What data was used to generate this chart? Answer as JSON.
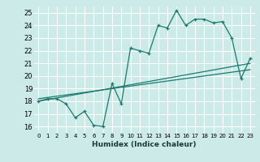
{
  "xlabel": "Humidex (Indice chaleur)",
  "ylabel": "",
  "bg_color": "#cceae7",
  "grid_color": "#ffffff",
  "line_color": "#1a7a6e",
  "xlim": [
    -0.5,
    23.5
  ],
  "ylim": [
    15.5,
    25.5
  ],
  "xticks": [
    0,
    1,
    2,
    3,
    4,
    5,
    6,
    7,
    8,
    9,
    10,
    11,
    12,
    13,
    14,
    15,
    16,
    17,
    18,
    19,
    20,
    21,
    22,
    23
  ],
  "yticks": [
    16,
    17,
    18,
    19,
    20,
    21,
    22,
    23,
    24,
    25
  ],
  "series1": [
    18.0,
    18.2,
    18.2,
    17.8,
    16.7,
    17.2,
    16.1,
    16.0,
    19.4,
    17.8,
    22.2,
    22.0,
    21.8,
    24.0,
    23.8,
    25.2,
    24.0,
    24.5,
    24.5,
    24.2,
    24.3,
    23.0,
    19.8,
    21.4
  ],
  "series2_x": [
    0,
    23
  ],
  "series2_y": [
    18.0,
    21.0
  ],
  "series3_x": [
    0,
    23
  ],
  "series3_y": [
    18.2,
    20.5
  ]
}
